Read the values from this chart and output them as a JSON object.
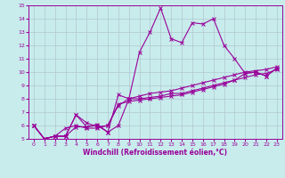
{
  "xlabel": "Windchill (Refroidissement éolien,°C)",
  "xlim": [
    -0.5,
    23.5
  ],
  "ylim": [
    5,
    15
  ],
  "xticks": [
    0,
    1,
    2,
    3,
    4,
    5,
    6,
    7,
    8,
    9,
    10,
    11,
    12,
    13,
    14,
    15,
    16,
    17,
    18,
    19,
    20,
    21,
    22,
    23
  ],
  "yticks": [
    5,
    6,
    7,
    8,
    9,
    10,
    11,
    12,
    13,
    14,
    15
  ],
  "background_color": "#c8ecec",
  "grid_color": "#b0c8d0",
  "line_color": "#990099",
  "lines": [
    {
      "x": [
        0,
        1,
        2,
        3,
        4,
        5,
        6,
        7,
        8,
        9,
        10,
        11,
        12,
        13,
        14,
        15,
        16,
        17,
        18,
        19,
        20,
        21,
        22,
        23
      ],
      "y": [
        6.0,
        5.0,
        5.2,
        5.2,
        6.8,
        5.9,
        6.1,
        5.5,
        8.3,
        8.0,
        8.0,
        8.1,
        8.2,
        8.4,
        8.4,
        8.6,
        8.8,
        9.0,
        9.2,
        9.4,
        9.6,
        9.8,
        9.9,
        10.2
      ]
    },
    {
      "x": [
        0,
        1,
        2,
        3,
        4,
        5,
        6,
        7,
        8,
        9,
        10,
        11,
        12,
        13,
        14,
        15,
        16,
        17,
        18,
        19,
        20,
        21,
        22,
        23
      ],
      "y": [
        6.0,
        5.0,
        5.2,
        5.8,
        6.0,
        5.8,
        5.8,
        6.0,
        7.6,
        7.8,
        7.9,
        8.0,
        8.1,
        8.2,
        8.3,
        8.5,
        8.7,
        8.9,
        9.1,
        9.4,
        9.9,
        10.0,
        9.7,
        10.3
      ]
    },
    {
      "x": [
        0,
        1,
        2,
        3,
        4,
        5,
        6,
        7,
        8,
        9,
        10,
        11,
        12,
        13,
        14,
        15,
        16,
        17,
        18,
        19,
        20,
        21,
        22,
        23
      ],
      "y": [
        6.0,
        5.0,
        5.2,
        5.2,
        5.9,
        5.9,
        6.0,
        5.5,
        6.0,
        8.0,
        11.5,
        13.0,
        14.8,
        12.5,
        12.2,
        13.7,
        13.6,
        14.0,
        12.0,
        11.0,
        9.9,
        10.0,
        9.7,
        10.3
      ]
    },
    {
      "x": [
        0,
        1,
        2,
        3,
        4,
        5,
        6,
        7,
        8,
        9,
        10,
        11,
        12,
        13,
        14,
        15,
        16,
        17,
        18,
        19,
        20,
        21,
        22,
        23
      ],
      "y": [
        6.0,
        5.0,
        5.2,
        5.2,
        6.8,
        6.2,
        5.9,
        6.0,
        7.5,
        8.0,
        8.2,
        8.4,
        8.5,
        8.6,
        8.8,
        9.0,
        9.2,
        9.4,
        9.6,
        9.8,
        10.0,
        10.1,
        10.2,
        10.4
      ]
    }
  ]
}
